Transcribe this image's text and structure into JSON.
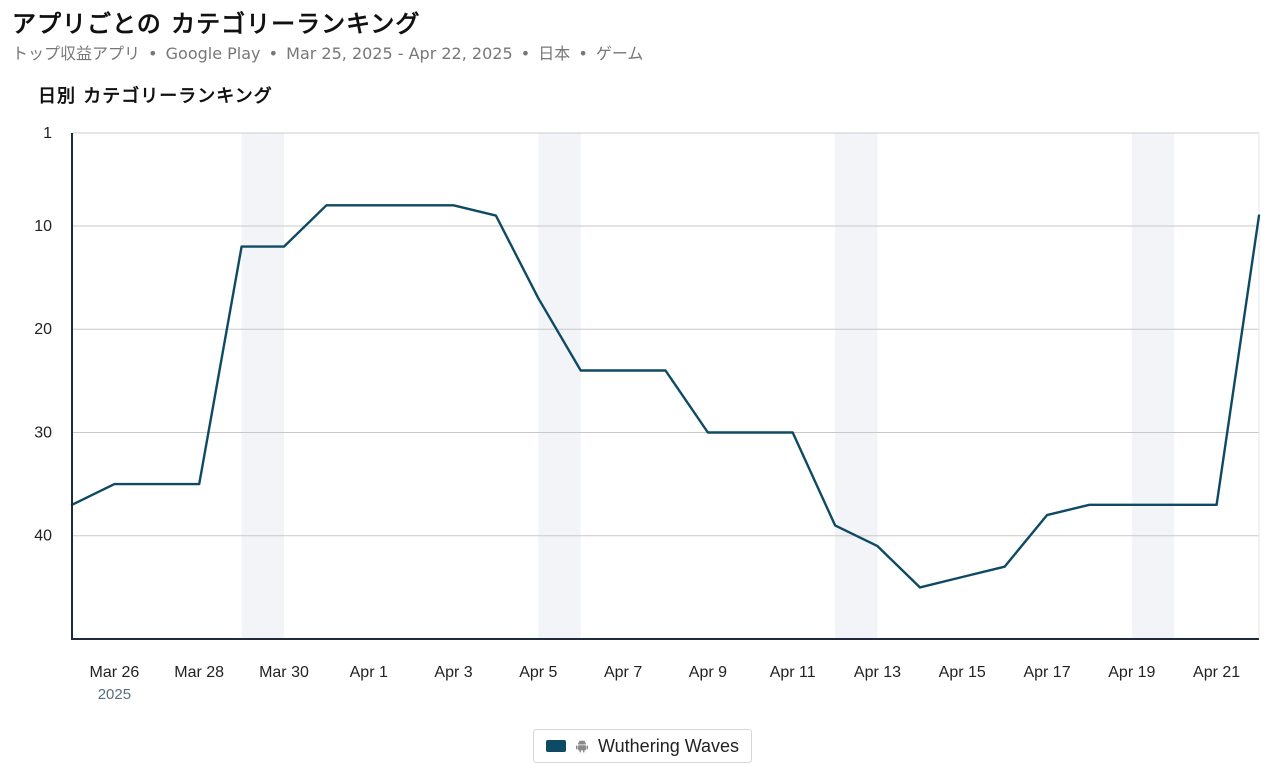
{
  "header": {
    "title": "アプリごとの カテゴリーランキング",
    "subtitle_parts": [
      "トップ収益アプリ",
      "Google Play",
      "Mar 25, 2025 - Apr 22, 2025",
      "日本",
      "ゲーム"
    ],
    "separator": "•"
  },
  "colors": {
    "series": "#0e4a63",
    "weekend_band": "#f3f4f7",
    "grid": "#c8c8c8",
    "axis": "#1f2a3a"
  },
  "chart_data": {
    "type": "line",
    "title": "日別 カテゴリーランキング",
    "xlabel": "",
    "ylabel": "",
    "y_inverted": true,
    "ylim": [
      1,
      50
    ],
    "yticks": [
      1,
      10,
      20,
      30,
      40
    ],
    "x_start_label": "Mar 25",
    "x_tick_labels": [
      "Mar 26",
      "Mar 28",
      "Mar 30",
      "Apr 1",
      "Apr 3",
      "Apr 5",
      "Apr 7",
      "Apr 9",
      "Apr 11",
      "Apr 13",
      "Apr 15",
      "Apr 17",
      "Apr 19",
      "Apr 21"
    ],
    "x_year_label": "2025",
    "weekend_bands": [
      [
        "Mar 29",
        "Mar 30"
      ],
      [
        "Apr 5",
        "Apr 6"
      ],
      [
        "Apr 12",
        "Apr 13"
      ],
      [
        "Apr 19",
        "Apr 20"
      ]
    ],
    "grid": true,
    "legend_position": "bottom-center",
    "series": [
      {
        "name": "Wuthering Waves",
        "platform_icon": "android-icon",
        "x": [
          "Mar 25",
          "Mar 26",
          "Mar 27",
          "Mar 28",
          "Mar 29",
          "Mar 30",
          "Mar 31",
          "Apr 1",
          "Apr 2",
          "Apr 3",
          "Apr 4",
          "Apr 5",
          "Apr 6",
          "Apr 7",
          "Apr 8",
          "Apr 9",
          "Apr 10",
          "Apr 11",
          "Apr 12",
          "Apr 13",
          "Apr 14",
          "Apr 15",
          "Apr 16",
          "Apr 17",
          "Apr 18",
          "Apr 19",
          "Apr 20",
          "Apr 21",
          "Apr 22"
        ],
        "values": [
          37,
          35,
          35,
          35,
          12,
          12,
          8,
          8,
          8,
          8,
          9,
          17,
          24,
          24,
          24,
          30,
          30,
          30,
          39,
          41,
          45,
          44,
          43,
          38,
          37,
          37,
          37,
          37,
          9
        ]
      }
    ]
  }
}
